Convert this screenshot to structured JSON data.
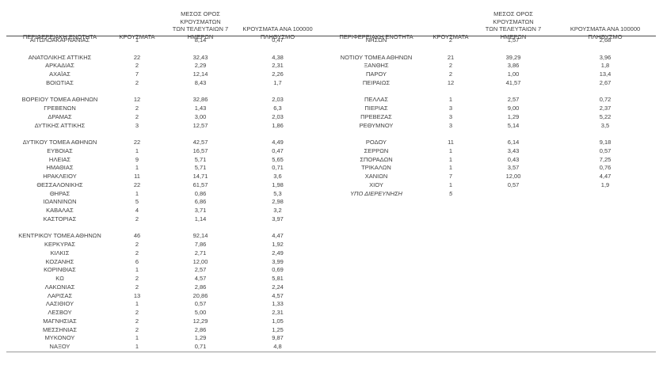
{
  "page": {
    "background_color": "#ffffff",
    "text_color": "#3f3f3f",
    "rule_color": "#4d4d4d"
  },
  "table": {
    "headers": {
      "region": "ΠΕΡΙΦΕΡΕΙΑΚΗ ΕΝΟΤΗΤΑ",
      "cases": "ΚΡΟΥΣΜΑΤΑ",
      "avg7": "ΜΕΣΟΣ ΟΡΟΣ ΚΡΟΥΣΜΑΤΩΝ\nΤΩΝ ΤΕΛΕΥΤΑΙΩΝ 7\nΗΜΕΡΩΝ",
      "per100k": "ΚΡΟΥΣΜΑΤΑ ΑΝΑ 100000\nΠΛΗΘΥΣΜΟ"
    },
    "columns": [
      "region",
      "cases",
      "avg7",
      "per100k"
    ],
    "rows": [
      {
        "l": [
          "ΑΙΤΩΛΟΑΚΑΡΝΑΝΙΑΣ",
          "1",
          "8,14",
          "0,47"
        ],
        "r": [
          "ΝΗΣΩΝ",
          "2",
          "1,57",
          "2,68"
        ]
      },
      {
        "blank": true
      },
      {
        "l": [
          "ΑΝΑΤΟΛΙΚΗΣ ΑΤΤΙΚΗΣ",
          "22",
          "32,43",
          "4,38"
        ],
        "r": [
          "ΝΟΤΙΟΥ ΤΟΜΕΑ ΑΘΗΝΩΝ",
          "21",
          "39,29",
          "3,96"
        ]
      },
      {
        "l": [
          "ΑΡΚΑΔΙΑΣ",
          "2",
          "2,29",
          "2,31"
        ],
        "r": [
          "ΞΑΝΘΗΣ",
          "2",
          "3,86",
          "1,8"
        ]
      },
      {
        "l": [
          "ΑΧΑΪΑΣ",
          "7",
          "12,14",
          "2,26"
        ],
        "r": [
          "ΠΑΡΟΥ",
          "2",
          "1,00",
          "13,4"
        ]
      },
      {
        "l": [
          "ΒΟΙΩΤΙΑΣ",
          "2",
          "8,43",
          "1,7"
        ],
        "r": [
          "ΠΕΙΡΑΙΩΣ",
          "12",
          "41,57",
          "2,67"
        ]
      },
      {
        "blank": true
      },
      {
        "l": [
          "ΒΟΡΕΙΟΥ ΤΟΜΕΑ ΑΘΗΝΩΝ",
          "12",
          "32,86",
          "2,03"
        ],
        "r": [
          "ΠΕΛΛΑΣ",
          "1",
          "2,57",
          "0,72"
        ]
      },
      {
        "l": [
          "ΓΡΕΒΕΝΩΝ",
          "2",
          "1,43",
          "6,3"
        ],
        "r": [
          "ΠΙΕΡΙΑΣ",
          "3",
          "9,00",
          "2,37"
        ]
      },
      {
        "l": [
          "ΔΡΑΜΑΣ",
          "2",
          "3,00",
          "2,03"
        ],
        "r": [
          "ΠΡΕΒΕΖΑΣ",
          "3",
          "1,29",
          "5,22"
        ]
      },
      {
        "l": [
          "ΔΥΤΙΚΗΣ ΑΤΤΙΚΗΣ",
          "3",
          "12,57",
          "1,86"
        ],
        "r": [
          "ΡΕΘΥΜΝΟΥ",
          "3",
          "5,14",
          "3,5"
        ]
      },
      {
        "blank": true
      },
      {
        "l": [
          "ΔΥΤΙΚΟΥ ΤΟΜΕΑ ΑΘΗΝΩΝ",
          "22",
          "42,57",
          "4,49"
        ],
        "r": [
          "ΡΟΔΟΥ",
          "11",
          "6,14",
          "9,18"
        ]
      },
      {
        "l": [
          "ΕΥΒΟΙΑΣ",
          "1",
          "16,57",
          "0,47"
        ],
        "r": [
          "ΣΕΡΡΩΝ",
          "1",
          "3,43",
          "0,57"
        ]
      },
      {
        "l": [
          "ΗΛΕΙΑΣ",
          "9",
          "5,71",
          "5,65"
        ],
        "r": [
          "ΣΠΟΡΑΔΩΝ",
          "1",
          "0,43",
          "7,25"
        ]
      },
      {
        "l": [
          "ΗΜΑΘΙΑΣ",
          "1",
          "5,71",
          "0,71"
        ],
        "r": [
          "ΤΡΙΚΑΛΩΝ",
          "1",
          "3,57",
          "0,76"
        ]
      },
      {
        "l": [
          "ΗΡΑΚΛΕΙΟΥ",
          "11",
          "14,71",
          "3,6"
        ],
        "r": [
          "ΧΑΝΙΩΝ",
          "7",
          "12,00",
          "4,47"
        ]
      },
      {
        "l": [
          "ΘΕΣΣΑΛΟΝΙΚΗΣ",
          "22",
          "61,57",
          "1,98"
        ],
        "r": [
          "ΧΙΟΥ",
          "1",
          "0,57",
          "1,9"
        ]
      },
      {
        "l": [
          "ΘΗΡΑΣ",
          "1",
          "0,86",
          "5,3"
        ],
        "r": [
          "ΥΠΟ ΔΙΕΡΕΥΝΗΣΗ",
          "5",
          "",
          ""
        ],
        "rItalic": true
      },
      {
        "l": [
          "ΙΩΑΝΝΙΝΩΝ",
          "5",
          "6,86",
          "2,98"
        ]
      },
      {
        "l": [
          "ΚΑΒΑΛΑΣ",
          "4",
          "3,71",
          "3,2"
        ]
      },
      {
        "l": [
          "ΚΑΣΤΟΡΙΑΣ",
          "2",
          "1,14",
          "3,97"
        ]
      },
      {
        "blank": true
      },
      {
        "l": [
          "ΚΕΝΤΡΙΚΟΥ ΤΟΜΕΑ ΑΘΗΝΩΝ",
          "46",
          "92,14",
          "4,47"
        ]
      },
      {
        "l": [
          "ΚΕΡΚΥΡΑΣ",
          "2",
          "7,86",
          "1,92"
        ]
      },
      {
        "l": [
          "ΚΙΛΚΙΣ",
          "2",
          "2,71",
          "2,49"
        ]
      },
      {
        "l": [
          "ΚΟΖΑΝΗΣ",
          "6",
          "12,00",
          "3,99"
        ]
      },
      {
        "l": [
          "ΚΟΡΙΝΘΙΑΣ",
          "1",
          "2,57",
          "0,69"
        ]
      },
      {
        "l": [
          "ΚΩ",
          "2",
          "4,57",
          "5,81"
        ]
      },
      {
        "l": [
          "ΛΑΚΩΝΙΑΣ",
          "2",
          "2,86",
          "2,24"
        ]
      },
      {
        "l": [
          "ΛΑΡΙΣΑΣ",
          "13",
          "20,86",
          "4,57"
        ]
      },
      {
        "l": [
          "ΛΑΣΙΘΙΟΥ",
          "1",
          "0,57",
          "1,33"
        ]
      },
      {
        "l": [
          "ΛΕΣΒΟΥ",
          "2",
          "5,00",
          "2,31"
        ]
      },
      {
        "l": [
          "ΜΑΓΝΗΣΙΑΣ",
          "2",
          "12,29",
          "1,05"
        ]
      },
      {
        "l": [
          "ΜΕΣΣΗΝΙΑΣ",
          "2",
          "2,86",
          "1,25"
        ]
      },
      {
        "l": [
          "ΜΥΚΟΝΟΥ",
          "1",
          "1,29",
          "9,87"
        ]
      },
      {
        "l": [
          "ΝΑΞΟΥ",
          "1",
          "0,71",
          "4,8"
        ]
      }
    ]
  }
}
